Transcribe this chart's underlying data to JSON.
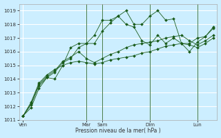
{
  "background_color": "#cceeff",
  "grid_color": "#ffffff",
  "line_color": "#1a5c1a",
  "marker": "D",
  "marker_size": 2,
  "xlabel": "Pression niveau de la mer( hPa )",
  "ylim": [
    1011,
    1019.5
  ],
  "yticks": [
    1011,
    1012,
    1013,
    1014,
    1015,
    1016,
    1017,
    1018,
    1019
  ],
  "day_labels": [
    "Ven",
    "Mar",
    "Sam",
    "Dim",
    "Lun"
  ],
  "day_positions": [
    0,
    8,
    10,
    16,
    22
  ],
  "n_points": 25,
  "series": [
    [
      1011.3,
      1011.9,
      1013.3,
      1014.1,
      1014.0,
      1015.0,
      1016.3,
      1016.6,
      1016.6,
      1017.2,
      1018.3,
      1018.3,
      1018.6,
      1019.0,
      1018.0,
      1018.0,
      1018.6,
      1019.0,
      1018.3,
      1018.4,
      1016.6,
      1016.6,
      1017.0,
      1017.1,
      1017.8
    ],
    [
      1011.3,
      1012.1,
      1013.5,
      1014.1,
      1014.5,
      1015.2,
      1015.5,
      1016.3,
      1016.6,
      1016.6,
      1017.5,
      1018.1,
      1018.6,
      1018.0,
      1017.8,
      1016.8,
      1016.5,
      1017.2,
      1016.6,
      1017.0,
      1016.6,
      1016.0,
      1016.7,
      1017.1,
      1017.7
    ],
    [
      1011.3,
      1012.2,
      1013.6,
      1014.2,
      1014.6,
      1015.3,
      1015.6,
      1016.0,
      1015.5,
      1015.2,
      1015.5,
      1015.8,
      1016.0,
      1016.3,
      1016.5,
      1016.6,
      1016.7,
      1016.8,
      1017.0,
      1017.1,
      1017.2,
      1016.8,
      1016.5,
      1016.8,
      1017.2
    ],
    [
      1011.3,
      1012.3,
      1013.7,
      1014.3,
      1014.7,
      1015.0,
      1015.2,
      1015.3,
      1015.2,
      1015.1,
      1015.2,
      1015.4,
      1015.5,
      1015.6,
      1015.7,
      1015.9,
      1016.0,
      1016.2,
      1016.4,
      1016.5,
      1016.6,
      1016.5,
      1016.3,
      1016.6,
      1017.0
    ]
  ],
  "vline_positions": [
    8,
    10,
    16,
    22
  ],
  "figsize": [
    3.2,
    2.0
  ],
  "dpi": 100
}
